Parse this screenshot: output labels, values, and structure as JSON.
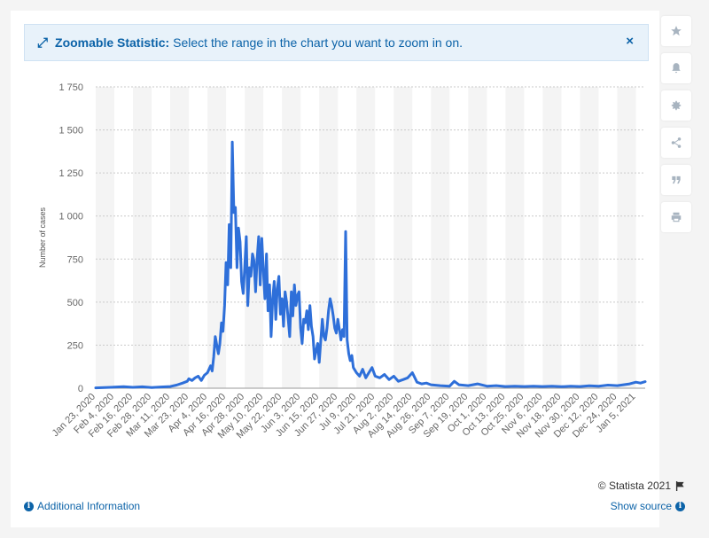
{
  "banner": {
    "icon": "expand-arrows-icon",
    "bold": "Zoomable Statistic:",
    "text": "Select the range in the chart you want to zoom in on.",
    "close": "×"
  },
  "sidebar": [
    "star-icon",
    "bell-icon",
    "gear-icon",
    "share-icon",
    "quote-icon",
    "print-icon"
  ],
  "footer": {
    "copyright": "© Statista 2021",
    "additional_info": "Additional Information",
    "show_source": "Show source"
  },
  "colors": {
    "line": "#2e6fd9",
    "accent": "#0c63a8",
    "band": "#f4f4f4"
  },
  "chart_data": {
    "type": "line",
    "ylabel": "Number of cases",
    "ylim": [
      0,
      1750
    ],
    "yticks": [
      0,
      250,
      500,
      750,
      1000,
      1250,
      1500,
      1750
    ],
    "ytick_labels": [
      "0",
      "250",
      "500",
      "750",
      "1 000",
      "1 250",
      "1 500",
      "1 750"
    ],
    "x_start": "2020-01-23",
    "x_end": "2021-01-11",
    "xticks": [
      "Jan 23, 2020",
      "Feb 4, 2020",
      "Feb 16, 2020",
      "Feb 28, 2020",
      "Mar 11, 2020",
      "Mar 23, 2020",
      "Apr 4, 2020",
      "Apr 16, 2020",
      "Apr 28, 2020",
      "May 10, 2020",
      "May 22, 2020",
      "Jun 3, 2020",
      "Jun 15, 2020",
      "Jun 27, 2020",
      "Jul 9, 2020",
      "Jul 21, 2020",
      "Aug 2, 2020",
      "Aug 14, 2020",
      "Aug 26, 2020",
      "Sep 7, 2020",
      "Sep 19, 2020",
      "Oct 1, 2020",
      "Oct 13, 2020",
      "Oct 25, 2020",
      "Nov 6, 2020",
      "Nov 18, 2020",
      "Nov 30, 2020",
      "Dec 12, 2020",
      "Dec 24, 2020",
      "Jan 5, 2021"
    ],
    "grid": true,
    "series": [
      {
        "points": [
          [
            "2020-01-23",
            2
          ],
          [
            "2020-02-04",
            6
          ],
          [
            "2020-02-10",
            9
          ],
          [
            "2020-02-16",
            5
          ],
          [
            "2020-02-22",
            8
          ],
          [
            "2020-02-28",
            4
          ],
          [
            "2020-03-05",
            7
          ],
          [
            "2020-03-11",
            10
          ],
          [
            "2020-03-15",
            18
          ],
          [
            "2020-03-19",
            30
          ],
          [
            "2020-03-22",
            40
          ],
          [
            "2020-03-23",
            55
          ],
          [
            "2020-03-25",
            45
          ],
          [
            "2020-03-27",
            60
          ],
          [
            "2020-03-29",
            70
          ],
          [
            "2020-03-31",
            45
          ],
          [
            "2020-04-02",
            75
          ],
          [
            "2020-04-04",
            90
          ],
          [
            "2020-04-06",
            130
          ],
          [
            "2020-04-07",
            100
          ],
          [
            "2020-04-08",
            180
          ],
          [
            "2020-04-09",
            300
          ],
          [
            "2020-04-10",
            250
          ],
          [
            "2020-04-11",
            200
          ],
          [
            "2020-04-12",
            260
          ],
          [
            "2020-04-13",
            380
          ],
          [
            "2020-04-14",
            330
          ],
          [
            "2020-04-15",
            480
          ],
          [
            "2020-04-16",
            730
          ],
          [
            "2020-04-17",
            600
          ],
          [
            "2020-04-18",
            950
          ],
          [
            "2020-04-19",
            700
          ],
          [
            "2020-04-20",
            1430
          ],
          [
            "2020-04-21",
            1020
          ],
          [
            "2020-04-22",
            1050
          ],
          [
            "2020-04-23",
            700
          ],
          [
            "2020-04-24",
            930
          ],
          [
            "2020-04-25",
            850
          ],
          [
            "2020-04-26",
            620
          ],
          [
            "2020-04-27",
            550
          ],
          [
            "2020-04-28",
            700
          ],
          [
            "2020-04-29",
            880
          ],
          [
            "2020-04-30",
            480
          ],
          [
            "2020-05-01",
            700
          ],
          [
            "2020-05-02",
            650
          ],
          [
            "2020-05-03",
            780
          ],
          [
            "2020-05-04",
            740
          ],
          [
            "2020-05-05",
            560
          ],
          [
            "2020-05-06",
            750
          ],
          [
            "2020-05-07",
            880
          ],
          [
            "2020-05-08",
            600
          ],
          [
            "2020-05-09",
            870
          ],
          [
            "2020-05-10",
            680
          ],
          [
            "2020-05-11",
            520
          ],
          [
            "2020-05-12",
            780
          ],
          [
            "2020-05-13",
            450
          ],
          [
            "2020-05-14",
            600
          ],
          [
            "2020-05-15",
            300
          ],
          [
            "2020-05-16",
            520
          ],
          [
            "2020-05-17",
            620
          ],
          [
            "2020-05-18",
            400
          ],
          [
            "2020-05-19",
            580
          ],
          [
            "2020-05-20",
            650
          ],
          [
            "2020-05-21",
            430
          ],
          [
            "2020-05-22",
            520
          ],
          [
            "2020-05-23",
            360
          ],
          [
            "2020-05-24",
            560
          ],
          [
            "2020-05-25",
            500
          ],
          [
            "2020-05-26",
            400
          ],
          [
            "2020-05-27",
            300
          ],
          [
            "2020-05-28",
            560
          ],
          [
            "2020-05-29",
            420
          ],
          [
            "2020-05-30",
            600
          ],
          [
            "2020-05-31",
            480
          ],
          [
            "2020-06-01",
            540
          ],
          [
            "2020-06-02",
            560
          ],
          [
            "2020-06-03",
            350
          ],
          [
            "2020-06-04",
            260
          ],
          [
            "2020-06-05",
            400
          ],
          [
            "2020-06-06",
            380
          ],
          [
            "2020-06-07",
            450
          ],
          [
            "2020-06-08",
            340
          ],
          [
            "2020-06-09",
            480
          ],
          [
            "2020-06-10",
            360
          ],
          [
            "2020-06-11",
            300
          ],
          [
            "2020-06-12",
            170
          ],
          [
            "2020-06-13",
            220
          ],
          [
            "2020-06-14",
            260
          ],
          [
            "2020-06-15",
            150
          ],
          [
            "2020-06-16",
            280
          ],
          [
            "2020-06-17",
            400
          ],
          [
            "2020-06-18",
            300
          ],
          [
            "2020-06-19",
            280
          ],
          [
            "2020-06-20",
            350
          ],
          [
            "2020-06-21",
            450
          ],
          [
            "2020-06-22",
            520
          ],
          [
            "2020-06-23",
            480
          ],
          [
            "2020-06-24",
            420
          ],
          [
            "2020-06-25",
            350
          ],
          [
            "2020-06-26",
            320
          ],
          [
            "2020-06-27",
            400
          ],
          [
            "2020-06-28",
            340
          ],
          [
            "2020-06-29",
            280
          ],
          [
            "2020-06-30",
            340
          ],
          [
            "2020-07-01",
            300
          ],
          [
            "2020-07-02",
            910
          ],
          [
            "2020-07-03",
            280
          ],
          [
            "2020-07-04",
            200
          ],
          [
            "2020-07-05",
            160
          ],
          [
            "2020-07-06",
            190
          ],
          [
            "2020-07-07",
            120
          ],
          [
            "2020-07-09",
            90
          ],
          [
            "2020-07-11",
            70
          ],
          [
            "2020-07-13",
            110
          ],
          [
            "2020-07-15",
            60
          ],
          [
            "2020-07-17",
            90
          ],
          [
            "2020-07-19",
            120
          ],
          [
            "2020-07-21",
            70
          ],
          [
            "2020-07-24",
            60
          ],
          [
            "2020-07-27",
            80
          ],
          [
            "2020-07-30",
            50
          ],
          [
            "2020-08-02",
            70
          ],
          [
            "2020-08-05",
            40
          ],
          [
            "2020-08-08",
            50
          ],
          [
            "2020-08-11",
            60
          ],
          [
            "2020-08-14",
            90
          ],
          [
            "2020-08-17",
            35
          ],
          [
            "2020-08-20",
            25
          ],
          [
            "2020-08-23",
            30
          ],
          [
            "2020-08-26",
            20
          ],
          [
            "2020-09-01",
            15
          ],
          [
            "2020-09-07",
            12
          ],
          [
            "2020-09-10",
            40
          ],
          [
            "2020-09-13",
            20
          ],
          [
            "2020-09-19",
            15
          ],
          [
            "2020-09-25",
            25
          ],
          [
            "2020-10-01",
            12
          ],
          [
            "2020-10-07",
            15
          ],
          [
            "2020-10-13",
            10
          ],
          [
            "2020-10-19",
            12
          ],
          [
            "2020-10-25",
            10
          ],
          [
            "2020-10-31",
            12
          ],
          [
            "2020-11-06",
            10
          ],
          [
            "2020-11-12",
            12
          ],
          [
            "2020-11-18",
            9
          ],
          [
            "2020-11-24",
            12
          ],
          [
            "2020-11-30",
            10
          ],
          [
            "2020-12-06",
            14
          ],
          [
            "2020-12-12",
            12
          ],
          [
            "2020-12-18",
            18
          ],
          [
            "2020-12-24",
            15
          ],
          [
            "2020-12-28",
            20
          ],
          [
            "2021-01-01",
            25
          ],
          [
            "2021-01-05",
            35
          ],
          [
            "2021-01-08",
            30
          ],
          [
            "2021-01-11",
            38
          ]
        ]
      }
    ]
  }
}
